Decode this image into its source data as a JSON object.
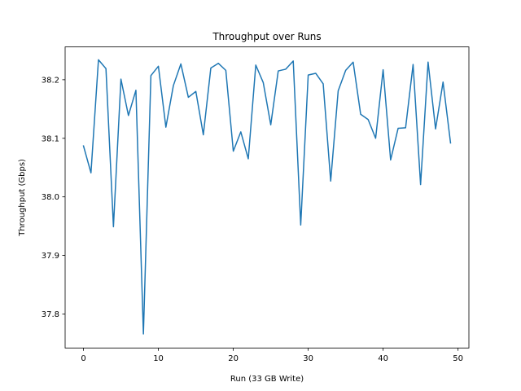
{
  "chart_data": {
    "type": "line",
    "title": "Throughput over Runs",
    "xlabel": "Run (33 GB Write)",
    "ylabel": "Throughput (Gbps)",
    "xlim": [
      -2.45,
      51.45
    ],
    "ylim": [
      37.742,
      38.256
    ],
    "xticks": [
      0,
      10,
      20,
      30,
      40,
      50
    ],
    "yticks": [
      37.8,
      37.9,
      38.0,
      38.1,
      38.2
    ],
    "ytick_labels": [
      "37.8",
      "37.9",
      "38.0",
      "38.1",
      "38.2"
    ],
    "grid": false,
    "series": [
      {
        "color": "#1f77b4",
        "x": [
          0,
          1,
          2,
          3,
          4,
          5,
          6,
          7,
          8,
          9,
          10,
          11,
          12,
          13,
          14,
          15,
          16,
          17,
          18,
          19,
          20,
          21,
          22,
          23,
          24,
          25,
          26,
          27,
          28,
          29,
          30,
          31,
          32,
          33,
          34,
          35,
          36,
          37,
          38,
          39,
          40,
          41,
          42,
          43,
          44,
          45,
          46,
          47,
          48,
          49
        ],
        "values": [
          38.087,
          38.041,
          38.234,
          38.219,
          37.949,
          38.201,
          38.139,
          38.182,
          37.766,
          38.207,
          38.223,
          38.119,
          38.19,
          38.227,
          38.17,
          38.18,
          38.106,
          38.22,
          38.228,
          38.216,
          38.078,
          38.111,
          38.065,
          38.225,
          38.195,
          38.123,
          38.215,
          38.218,
          38.232,
          37.952,
          38.208,
          38.211,
          38.193,
          38.027,
          38.181,
          38.216,
          38.23,
          38.141,
          38.132,
          38.1,
          38.217,
          38.063,
          38.117,
          38.118,
          38.226,
          38.021,
          38.23,
          38.116,
          38.196,
          38.092
        ]
      }
    ]
  }
}
